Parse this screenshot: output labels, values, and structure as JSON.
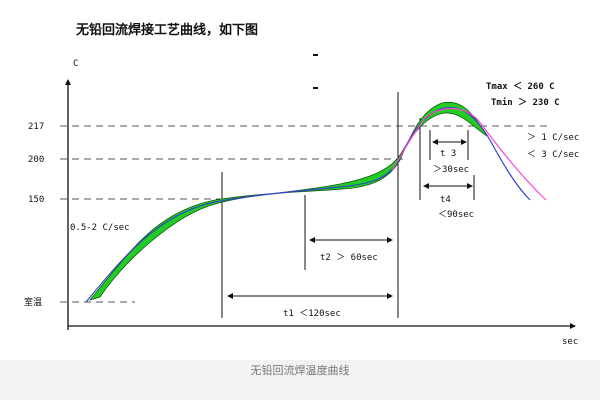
{
  "title": "无铅回流焊接工艺曲线，如下图",
  "caption": "无铅回流焊温度曲线",
  "axes": {
    "y_unit": "C",
    "x_unit": "sec"
  },
  "levels": [
    {
      "name": "217",
      "label": "217"
    },
    {
      "name": "200",
      "label": "200"
    },
    {
      "name": "150",
      "label": "150"
    },
    {
      "name": "room",
      "label": "室温"
    }
  ],
  "annotations": {
    "ramp_rate": "0.5-2 C/sec",
    "t1": "t1 ＜120sec",
    "t2": "t2 ＞ 60sec",
    "t3": "t 3",
    "t3_limit": "＞30sec",
    "t4": "t4",
    "t4_limit": "＜90sec",
    "tmax": "Tmax ＜ 260 C",
    "tmin": "Tmin ＞ 230 C",
    "rise_rate": "＞ 1 C/sec",
    "fall_rate": "＜ 3 C/sec"
  },
  "colors": {
    "band_fill": "#22cc22",
    "band_stroke": "#0b5c0b",
    "curve_blue": "#3344cc",
    "curve_pink": "#ff44cc",
    "dash": "#555555"
  }
}
